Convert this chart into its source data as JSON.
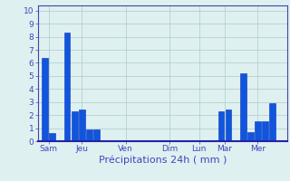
{
  "bars": [
    {
      "x": 1,
      "height": 6.4
    },
    {
      "x": 2,
      "height": 0.6
    },
    {
      "x": 4,
      "height": 8.3
    },
    {
      "x": 5,
      "height": 2.3
    },
    {
      "x": 6,
      "height": 2.4
    },
    {
      "x": 7,
      "height": 0.9
    },
    {
      "x": 8,
      "height": 0.9
    },
    {
      "x": 25,
      "height": 2.3
    },
    {
      "x": 26,
      "height": 2.4
    },
    {
      "x": 28,
      "height": 5.2
    },
    {
      "x": 29,
      "height": 0.7
    },
    {
      "x": 30,
      "height": 1.5
    },
    {
      "x": 31,
      "height": 1.5
    },
    {
      "x": 32,
      "height": 2.9
    }
  ],
  "bar_color": "#1155dd",
  "bar_edge_color": "#0033bb",
  "background_color": "#dff0f0",
  "grid_color": "#aacccc",
  "axis_color": "#4444aa",
  "tick_label_color": "#4444bb",
  "xlabel": "Précipitations 24h ( mm )",
  "xlabel_color": "#4444bb",
  "xlabel_fontsize": 8,
  "yticks": [
    0,
    1,
    2,
    3,
    4,
    5,
    6,
    7,
    8,
    9,
    10
  ],
  "ylim": [
    0,
    10.4
  ],
  "xtick_positions": [
    1.5,
    6.0,
    12.0,
    18.0,
    22.0,
    25.5,
    30.0
  ],
  "xtick_labels": [
    "Sam",
    "Jeu",
    "Ven",
    "Dim",
    "Lun",
    "Mar",
    "Mer"
  ],
  "xlim": [
    0,
    34
  ],
  "bar_width": 0.85,
  "figsize": [
    3.2,
    2.0
  ],
  "dpi": 100
}
